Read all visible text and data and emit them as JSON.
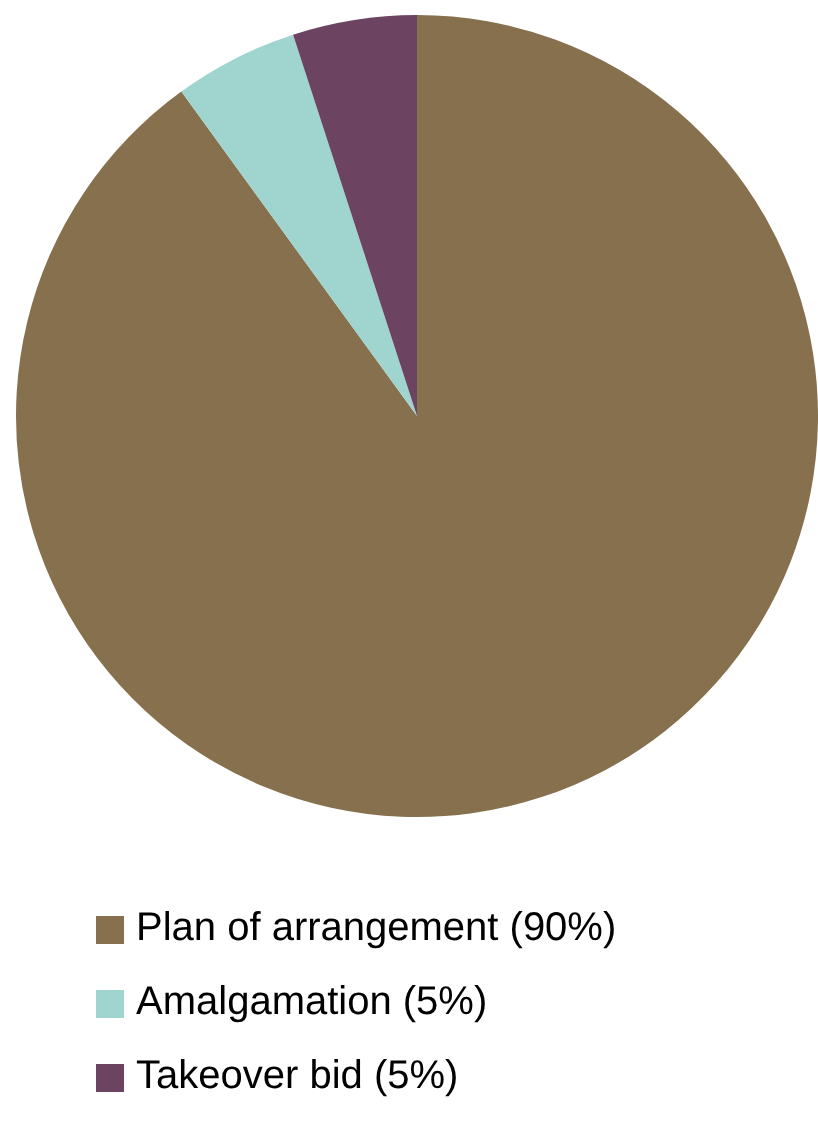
{
  "chart_data": {
    "type": "pie",
    "categories": [
      "Plan of arrangement (90%)",
      "Amalgamation (5%)",
      "Takeover bid (5%)"
    ],
    "values": [
      90,
      5,
      5
    ],
    "colors": [
      "#86704d",
      "#9fd5ce",
      "#6c4361"
    ],
    "legend": "bottom"
  }
}
